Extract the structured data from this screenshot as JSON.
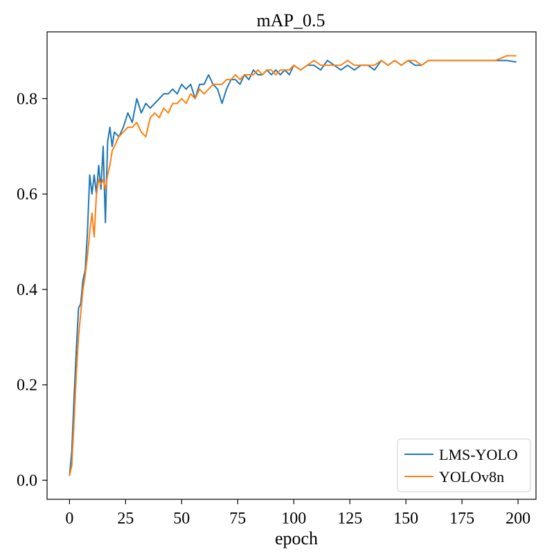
{
  "chart_data": {
    "type": "line",
    "title": "mAP_0.5",
    "xlabel": "epoch",
    "ylabel": "",
    "xlim": [
      -10,
      208
    ],
    "ylim": [
      -0.04,
      0.94
    ],
    "xticks": [
      0,
      25,
      50,
      75,
      100,
      125,
      150,
      175,
      200
    ],
    "yticks": [
      0.0,
      0.2,
      0.4,
      0.6,
      0.8
    ],
    "ytick_labels": [
      "0.0",
      "0.2",
      "0.4",
      "0.6",
      "0.8"
    ],
    "grid": false,
    "legend_position": "bottom-right",
    "series": [
      {
        "name": "LMS-YOLO",
        "color": "#1f77b4",
        "points": [
          [
            0,
            0.01
          ],
          [
            1,
            0.06
          ],
          [
            2,
            0.17
          ],
          [
            3,
            0.27
          ],
          [
            4,
            0.36
          ],
          [
            5,
            0.37
          ],
          [
            6,
            0.42
          ],
          [
            7,
            0.44
          ],
          [
            8,
            0.52
          ],
          [
            9,
            0.64
          ],
          [
            10,
            0.6
          ],
          [
            11,
            0.64
          ],
          [
            12,
            0.6
          ],
          [
            13,
            0.66
          ],
          [
            14,
            0.61
          ],
          [
            15,
            0.7
          ],
          [
            16,
            0.54
          ],
          [
            17,
            0.71
          ],
          [
            18,
            0.74
          ],
          [
            19,
            0.7
          ],
          [
            20,
            0.73
          ],
          [
            22,
            0.72
          ],
          [
            24,
            0.74
          ],
          [
            26,
            0.77
          ],
          [
            28,
            0.75
          ],
          [
            30,
            0.8
          ],
          [
            32,
            0.77
          ],
          [
            34,
            0.79
          ],
          [
            36,
            0.78
          ],
          [
            38,
            0.79
          ],
          [
            40,
            0.8
          ],
          [
            42,
            0.81
          ],
          [
            44,
            0.81
          ],
          [
            46,
            0.82
          ],
          [
            48,
            0.81
          ],
          [
            50,
            0.83
          ],
          [
            52,
            0.82
          ],
          [
            54,
            0.83
          ],
          [
            56,
            0.8
          ],
          [
            58,
            0.83
          ],
          [
            60,
            0.83
          ],
          [
            62,
            0.85
          ],
          [
            64,
            0.83
          ],
          [
            66,
            0.82
          ],
          [
            68,
            0.79
          ],
          [
            70,
            0.82
          ],
          [
            72,
            0.84
          ],
          [
            74,
            0.84
          ],
          [
            76,
            0.83
          ],
          [
            78,
            0.85
          ],
          [
            80,
            0.84
          ],
          [
            82,
            0.86
          ],
          [
            84,
            0.85
          ],
          [
            86,
            0.85
          ],
          [
            88,
            0.86
          ],
          [
            90,
            0.85
          ],
          [
            92,
            0.86
          ],
          [
            94,
            0.85
          ],
          [
            96,
            0.86
          ],
          [
            98,
            0.85
          ],
          [
            100,
            0.87
          ],
          [
            103,
            0.86
          ],
          [
            106,
            0.87
          ],
          [
            109,
            0.87
          ],
          [
            112,
            0.86
          ],
          [
            115,
            0.88
          ],
          [
            118,
            0.87
          ],
          [
            121,
            0.86
          ],
          [
            124,
            0.87
          ],
          [
            127,
            0.86
          ],
          [
            130,
            0.87
          ],
          [
            133,
            0.87
          ],
          [
            136,
            0.86
          ],
          [
            139,
            0.88
          ],
          [
            142,
            0.87
          ],
          [
            145,
            0.88
          ],
          [
            148,
            0.87
          ],
          [
            151,
            0.88
          ],
          [
            154,
            0.87
          ],
          [
            157,
            0.87
          ],
          [
            160,
            0.88
          ],
          [
            165,
            0.88
          ],
          [
            170,
            0.88
          ],
          [
            175,
            0.88
          ],
          [
            180,
            0.88
          ],
          [
            185,
            0.88
          ],
          [
            190,
            0.88
          ],
          [
            195,
            0.88
          ],
          [
            199,
            0.877
          ]
        ]
      },
      {
        "name": "YOLOv8n",
        "color": "#ff7f0e",
        "points": [
          [
            0,
            0.01
          ],
          [
            1,
            0.03
          ],
          [
            2,
            0.12
          ],
          [
            3,
            0.22
          ],
          [
            4,
            0.3
          ],
          [
            5,
            0.35
          ],
          [
            6,
            0.4
          ],
          [
            7,
            0.43
          ],
          [
            8,
            0.47
          ],
          [
            9,
            0.52
          ],
          [
            10,
            0.56
          ],
          [
            11,
            0.51
          ],
          [
            12,
            0.6
          ],
          [
            13,
            0.63
          ],
          [
            14,
            0.62
          ],
          [
            15,
            0.63
          ],
          [
            16,
            0.61
          ],
          [
            17,
            0.64
          ],
          [
            18,
            0.66
          ],
          [
            19,
            0.69
          ],
          [
            20,
            0.7
          ],
          [
            22,
            0.72
          ],
          [
            24,
            0.73
          ],
          [
            26,
            0.74
          ],
          [
            28,
            0.74
          ],
          [
            30,
            0.75
          ],
          [
            32,
            0.73
          ],
          [
            34,
            0.72
          ],
          [
            36,
            0.76
          ],
          [
            38,
            0.77
          ],
          [
            40,
            0.76
          ],
          [
            42,
            0.78
          ],
          [
            44,
            0.77
          ],
          [
            46,
            0.79
          ],
          [
            48,
            0.79
          ],
          [
            50,
            0.8
          ],
          [
            52,
            0.79
          ],
          [
            54,
            0.81
          ],
          [
            56,
            0.8
          ],
          [
            58,
            0.82
          ],
          [
            60,
            0.81
          ],
          [
            62,
            0.82
          ],
          [
            64,
            0.83
          ],
          [
            66,
            0.83
          ],
          [
            68,
            0.83
          ],
          [
            70,
            0.84
          ],
          [
            72,
            0.84
          ],
          [
            74,
            0.85
          ],
          [
            76,
            0.84
          ],
          [
            78,
            0.85
          ],
          [
            80,
            0.85
          ],
          [
            82,
            0.85
          ],
          [
            84,
            0.86
          ],
          [
            86,
            0.85
          ],
          [
            88,
            0.86
          ],
          [
            90,
            0.86
          ],
          [
            92,
            0.85
          ],
          [
            94,
            0.86
          ],
          [
            96,
            0.86
          ],
          [
            98,
            0.86
          ],
          [
            100,
            0.87
          ],
          [
            103,
            0.86
          ],
          [
            106,
            0.87
          ],
          [
            109,
            0.88
          ],
          [
            112,
            0.87
          ],
          [
            115,
            0.87
          ],
          [
            118,
            0.87
          ],
          [
            121,
            0.87
          ],
          [
            124,
            0.88
          ],
          [
            127,
            0.87
          ],
          [
            130,
            0.87
          ],
          [
            133,
            0.87
          ],
          [
            136,
            0.87
          ],
          [
            139,
            0.88
          ],
          [
            142,
            0.87
          ],
          [
            145,
            0.88
          ],
          [
            148,
            0.87
          ],
          [
            151,
            0.88
          ],
          [
            154,
            0.88
          ],
          [
            157,
            0.87
          ],
          [
            160,
            0.88
          ],
          [
            165,
            0.88
          ],
          [
            170,
            0.88
          ],
          [
            175,
            0.88
          ],
          [
            180,
            0.88
          ],
          [
            185,
            0.88
          ],
          [
            190,
            0.88
          ],
          [
            195,
            0.89
          ],
          [
            199,
            0.89
          ]
        ]
      }
    ]
  }
}
